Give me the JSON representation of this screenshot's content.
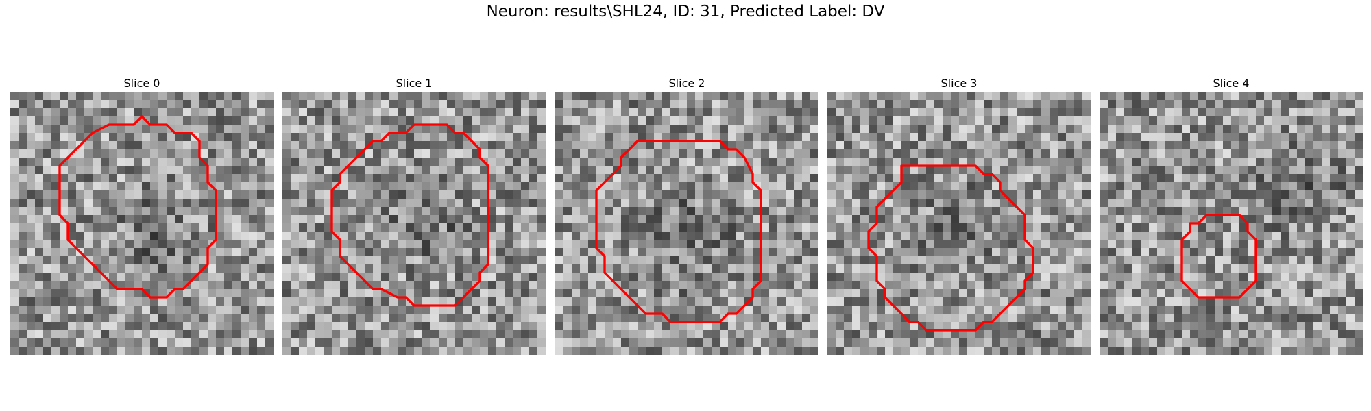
{
  "figure": {
    "title": "Neuron: results\\SHL24, ID: 31, Predicted Label: DV"
  },
  "colors": {
    "background": "#ffffff",
    "contour": "#ff0000",
    "colormap": "gray"
  },
  "slices": [
    {
      "title": "Slice 0",
      "contour": [
        [
          16,
          3
        ],
        [
          17,
          4
        ],
        [
          19,
          4
        ],
        [
          20,
          5
        ],
        [
          22,
          5
        ],
        [
          23,
          6
        ],
        [
          23,
          8
        ],
        [
          24,
          9
        ],
        [
          24,
          11
        ],
        [
          25,
          12
        ],
        [
          25,
          18
        ],
        [
          24,
          19
        ],
        [
          24,
          21
        ],
        [
          23,
          22
        ],
        [
          22,
          23
        ],
        [
          21,
          24
        ],
        [
          20,
          24
        ],
        [
          19,
          25
        ],
        [
          17,
          25
        ],
        [
          16,
          24
        ],
        [
          13,
          24
        ],
        [
          12,
          23
        ],
        [
          11,
          22
        ],
        [
          10,
          21
        ],
        [
          9,
          20
        ],
        [
          8,
          19
        ],
        [
          7,
          18
        ],
        [
          7,
          16
        ],
        [
          6,
          15
        ],
        [
          6,
          9
        ],
        [
          7,
          8
        ],
        [
          8,
          7
        ],
        [
          9,
          6
        ],
        [
          10,
          5
        ],
        [
          12,
          4
        ],
        [
          15,
          4
        ]
      ]
    },
    {
      "title": "Slice 1",
      "contour": [
        [
          16,
          4
        ],
        [
          20,
          4
        ],
        [
          21,
          5
        ],
        [
          22,
          5
        ],
        [
          23,
          6
        ],
        [
          24,
          7
        ],
        [
          24,
          8
        ],
        [
          25,
          9
        ],
        [
          25,
          21
        ],
        [
          24,
          22
        ],
        [
          24,
          23
        ],
        [
          23,
          24
        ],
        [
          22,
          25
        ],
        [
          21,
          26
        ],
        [
          16,
          26
        ],
        [
          15,
          25
        ],
        [
          14,
          25
        ],
        [
          12,
          24
        ],
        [
          11,
          24
        ],
        [
          10,
          23
        ],
        [
          9,
          22
        ],
        [
          8,
          21
        ],
        [
          7,
          20
        ],
        [
          7,
          18
        ],
        [
          6,
          17
        ],
        [
          6,
          12
        ],
        [
          7,
          11
        ],
        [
          7,
          10
        ],
        [
          8,
          9
        ],
        [
          9,
          8
        ],
        [
          10,
          7
        ],
        [
          11,
          6
        ],
        [
          12,
          6
        ],
        [
          13,
          5
        ],
        [
          15,
          5
        ]
      ]
    },
    {
      "title": "Slice 2",
      "contour": [
        [
          10,
          6
        ],
        [
          20,
          6
        ],
        [
          21,
          7
        ],
        [
          22,
          7
        ],
        [
          23,
          8
        ],
        [
          24,
          10
        ],
        [
          24,
          11
        ],
        [
          25,
          12
        ],
        [
          25,
          23
        ],
        [
          24,
          24
        ],
        [
          24,
          25
        ],
        [
          23,
          26
        ],
        [
          22,
          27
        ],
        [
          21,
          27
        ],
        [
          20,
          28
        ],
        [
          14,
          28
        ],
        [
          13,
          27
        ],
        [
          11,
          27
        ],
        [
          10,
          26
        ],
        [
          9,
          25
        ],
        [
          8,
          24
        ],
        [
          7,
          23
        ],
        [
          6,
          22
        ],
        [
          6,
          20
        ],
        [
          5,
          19
        ],
        [
          5,
          12
        ],
        [
          6,
          11
        ],
        [
          7,
          10
        ],
        [
          8,
          9
        ],
        [
          8,
          8
        ],
        [
          9,
          7
        ]
      ]
    },
    {
      "title": "Slice 3",
      "contour": [
        [
          9,
          9
        ],
        [
          18,
          9
        ],
        [
          19,
          10
        ],
        [
          20,
          10
        ],
        [
          21,
          11
        ],
        [
          21,
          12
        ],
        [
          22,
          13
        ],
        [
          23,
          14
        ],
        [
          24,
          15
        ],
        [
          24,
          18
        ],
        [
          25,
          19
        ],
        [
          25,
          22
        ],
        [
          24,
          23
        ],
        [
          24,
          24
        ],
        [
          23,
          25
        ],
        [
          22,
          26
        ],
        [
          21,
          27
        ],
        [
          20,
          28
        ],
        [
          19,
          28
        ],
        [
          18,
          29
        ],
        [
          12,
          29
        ],
        [
          11,
          28
        ],
        [
          10,
          28
        ],
        [
          9,
          27
        ],
        [
          8,
          26
        ],
        [
          7,
          25
        ],
        [
          7,
          24
        ],
        [
          6,
          23
        ],
        [
          6,
          20
        ],
        [
          5,
          19
        ],
        [
          5,
          17
        ],
        [
          6,
          16
        ],
        [
          6,
          14
        ],
        [
          7,
          13
        ],
        [
          8,
          12
        ],
        [
          9,
          11
        ]
      ]
    },
    {
      "title": "Slice 4",
      "contour": [
        [
          13,
          15
        ],
        [
          17,
          15
        ],
        [
          18,
          16
        ],
        [
          18,
          17
        ],
        [
          19,
          18
        ],
        [
          19,
          23
        ],
        [
          18,
          24
        ],
        [
          17,
          25
        ],
        [
          12,
          25
        ],
        [
          11,
          24
        ],
        [
          10,
          23
        ],
        [
          10,
          18
        ],
        [
          11,
          17
        ],
        [
          11,
          16
        ],
        [
          12,
          16
        ]
      ]
    }
  ]
}
